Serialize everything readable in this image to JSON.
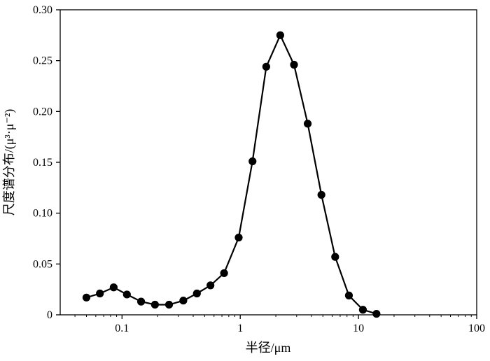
{
  "chart_data": {
    "type": "line",
    "x_scale": "log",
    "xlabel": "半径/μm",
    "ylabel": "尺度谱分布/(μ³·μ⁻²)",
    "xlim": [
      0.03,
      100
    ],
    "ylim": [
      0,
      0.3
    ],
    "x_ticks": [
      {
        "value": 0.1,
        "label": "0.1"
      },
      {
        "value": 1,
        "label": "1"
      },
      {
        "value": 10,
        "label": "10"
      },
      {
        "value": 100,
        "label": "100"
      }
    ],
    "y_ticks": [
      {
        "value": 0,
        "label": "0"
      },
      {
        "value": 0.05,
        "label": "0.05"
      },
      {
        "value": 0.1,
        "label": "0.10"
      },
      {
        "value": 0.15,
        "label": "0.15"
      },
      {
        "value": 0.2,
        "label": "0.20"
      },
      {
        "value": 0.25,
        "label": "0.25"
      },
      {
        "value": 0.3,
        "label": "0.30"
      }
    ],
    "grid": false,
    "series": [
      {
        "color": "#000000",
        "marker": "filled-circle",
        "x": [
          0.05,
          0.065,
          0.085,
          0.11,
          0.145,
          0.19,
          0.25,
          0.33,
          0.43,
          0.56,
          0.73,
          0.97,
          1.27,
          1.66,
          2.18,
          2.85,
          3.72,
          4.86,
          6.35,
          8.3,
          10.9,
          14.2
        ],
        "y": [
          0.017,
          0.021,
          0.027,
          0.02,
          0.013,
          0.01,
          0.01,
          0.014,
          0.021,
          0.029,
          0.041,
          0.076,
          0.151,
          0.244,
          0.275,
          0.246,
          0.188,
          0.118,
          0.057,
          0.019,
          0.005,
          0.001
        ]
      }
    ]
  }
}
